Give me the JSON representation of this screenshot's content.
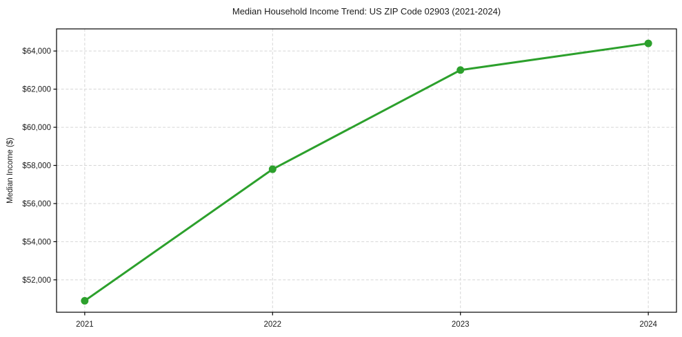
{
  "chart_data": {
    "type": "line",
    "title": "Median Household Income Trend: US ZIP Code 02903 (2021-2024)",
    "xlabel": "",
    "ylabel": "Median Income ($)",
    "categories": [
      "2021",
      "2022",
      "2023",
      "2024"
    ],
    "series": [
      {
        "values": [
          50900,
          57800,
          63000,
          64400
        ],
        "color": "#2ca02c",
        "marker": "circle"
      }
    ],
    "yticks": [
      52000,
      54000,
      56000,
      58000,
      60000,
      62000,
      64000
    ],
    "ytick_prefix": "$",
    "ylim": [
      50300,
      65160
    ],
    "xlim_index": [
      -0.15,
      3.15
    ],
    "grid": true,
    "grid_style": "dashed",
    "grid_color": "#d5d5d5",
    "spine_color": "#000000",
    "text_color": "#1a1a1a",
    "background": "#ffffff",
    "legend_position": "none"
  }
}
